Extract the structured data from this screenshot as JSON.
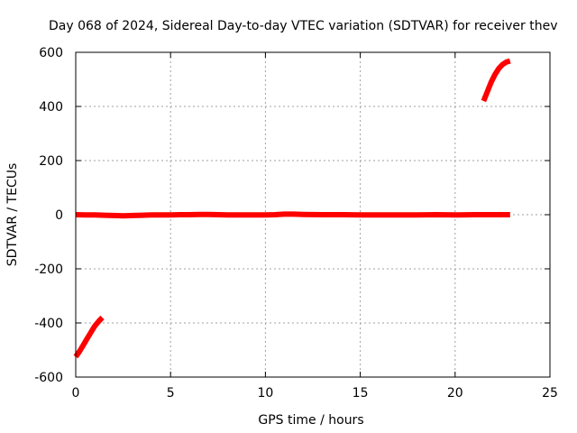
{
  "chart_data": {
    "type": "line",
    "title": "Day 068 of 2024, Sidereal Day-to-day VTEC variation (SDTVAR) for receiver thev",
    "xlabel": "GPS time / hours",
    "ylabel": "SDTVAR / TECUs",
    "xlim": [
      0,
      25
    ],
    "ylim": [
      -600,
      600
    ],
    "xticks": [
      0,
      5,
      10,
      15,
      20,
      25
    ],
    "yticks": [
      -600,
      -400,
      -200,
      0,
      200,
      400,
      600
    ],
    "grid": true,
    "series_color": "#ff0000",
    "series": [
      {
        "points": [
          [
            0.0,
            -525
          ],
          [
            0.2,
            -505
          ],
          [
            0.4,
            -482
          ],
          [
            0.6,
            -458
          ],
          [
            0.8,
            -435
          ],
          [
            1.0,
            -412
          ],
          [
            1.2,
            -395
          ],
          [
            1.4,
            -380
          ]
        ]
      },
      {
        "points": [
          [
            0.0,
            0
          ],
          [
            0.5,
            -1
          ],
          [
            1.0,
            -1
          ],
          [
            1.5,
            -2
          ],
          [
            2.0,
            -3
          ],
          [
            2.5,
            -4
          ],
          [
            3.0,
            -3
          ],
          [
            3.5,
            -2
          ],
          [
            4.0,
            -1
          ],
          [
            4.5,
            -1
          ],
          [
            5.0,
            -1
          ],
          [
            5.5,
            0
          ],
          [
            6.0,
            0
          ],
          [
            6.5,
            1
          ],
          [
            7.0,
            1
          ],
          [
            7.5,
            0
          ],
          [
            8.0,
            -1
          ],
          [
            9.0,
            -1
          ],
          [
            10.0,
            -1
          ],
          [
            10.5,
            0
          ],
          [
            11.0,
            2
          ],
          [
            11.5,
            2
          ],
          [
            12.0,
            1
          ],
          [
            13.0,
            0
          ],
          [
            14.0,
            0
          ],
          [
            15.0,
            -1
          ],
          [
            16.0,
            -1
          ],
          [
            17.0,
            -1
          ],
          [
            18.0,
            -1
          ],
          [
            19.0,
            0
          ],
          [
            20.0,
            -1
          ],
          [
            21.0,
            0
          ],
          [
            22.0,
            0
          ],
          [
            22.9,
            0
          ]
        ]
      },
      {
        "points": [
          [
            21.5,
            420
          ],
          [
            21.7,
            455
          ],
          [
            21.9,
            490
          ],
          [
            22.1,
            518
          ],
          [
            22.3,
            540
          ],
          [
            22.5,
            555
          ],
          [
            22.7,
            564
          ],
          [
            22.9,
            568
          ]
        ]
      }
    ]
  }
}
